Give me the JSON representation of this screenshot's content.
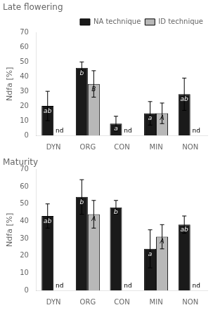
{
  "chart_data": [
    {
      "type": "bar",
      "title": "Late flowering",
      "ylabel": "Ndfa [%]",
      "categories": [
        "DYN",
        "ORG",
        "CON",
        "MIN",
        "NON"
      ],
      "series": [
        {
          "name": "NA technique",
          "color": "#1a1a1a",
          "values": [
            20,
            46,
            8,
            15,
            28
          ],
          "errors": [
            10,
            4,
            5,
            8,
            11
          ],
          "annotations": [
            "ab",
            "b",
            "a",
            "a",
            "ab"
          ]
        },
        {
          "name": "ID technique",
          "color": "#b8b8b8",
          "values": [
            null,
            35,
            null,
            15,
            null
          ],
          "errors": [
            null,
            9,
            null,
            7,
            null
          ],
          "annotations": [
            "nd",
            "B",
            "nd",
            "A",
            "nd"
          ]
        }
      ],
      "ylim": [
        0,
        70
      ],
      "yticks": [
        0,
        10,
        20,
        30,
        40,
        50,
        60,
        70
      ],
      "grid": false,
      "legend": "upper right"
    },
    {
      "type": "bar",
      "title": "Maturity",
      "ylabel": "Ndfa [%]",
      "categories": [
        "DYN",
        "ORG",
        "CON",
        "MIN",
        "NON"
      ],
      "series": [
        {
          "color": "#1a1a1a",
          "values": [
            43,
            54,
            48,
            24,
            38
          ],
          "errors": [
            7,
            10,
            4,
            11,
            5
          ],
          "annotations": [
            "ab",
            "b",
            "b",
            "a",
            "ab"
          ]
        },
        {
          "color": "#b8b8b8",
          "values": [
            null,
            44,
            null,
            31,
            null
          ],
          "errors": [
            null,
            8,
            null,
            7,
            null
          ],
          "annotations": [
            "nd",
            "A",
            "nd",
            "A",
            "nd"
          ]
        }
      ],
      "ylim": [
        0,
        70
      ],
      "yticks": [
        0,
        10,
        20,
        30,
        40,
        50,
        60,
        70
      ],
      "grid": false
    }
  ]
}
